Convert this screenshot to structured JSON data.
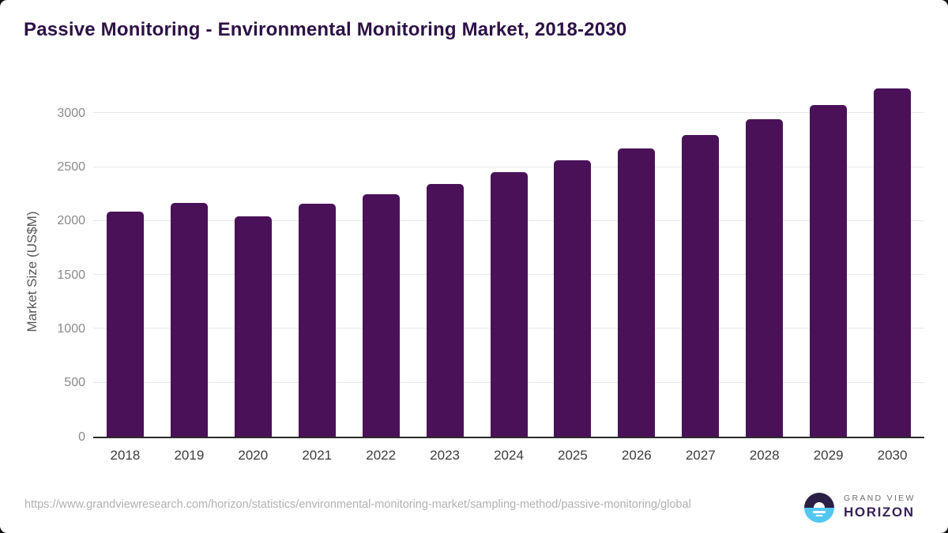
{
  "chart_data": {
    "type": "bar",
    "title": "Passive Monitoring - Environmental Monitoring Market, 2018-2030",
    "xlabel": "",
    "ylabel": "Market Size (US$M)",
    "categories": [
      "2018",
      "2019",
      "2020",
      "2021",
      "2022",
      "2023",
      "2024",
      "2025",
      "2026",
      "2027",
      "2028",
      "2029",
      "2030"
    ],
    "values": [
      2090,
      2170,
      2045,
      2160,
      2250,
      2345,
      2455,
      2560,
      2675,
      2800,
      2940,
      3075,
      3230
    ],
    "yticks": [
      0,
      500,
      1000,
      1500,
      2000,
      2500,
      3000
    ],
    "ylim": [
      0,
      3300
    ],
    "grid": true,
    "legend": false,
    "bar_color": "#4a1158"
  },
  "footer": {
    "source_url": "https://www.grandviewresearch.com/horizon/statistics/environmental-monitoring-market/sampling-method/passive-monitoring/global"
  },
  "logo": {
    "brand_top": "GRAND VIEW",
    "brand_bottom": "HORIZON",
    "mark_top_color": "#2c1f45",
    "mark_bottom_color": "#52c7f2"
  }
}
